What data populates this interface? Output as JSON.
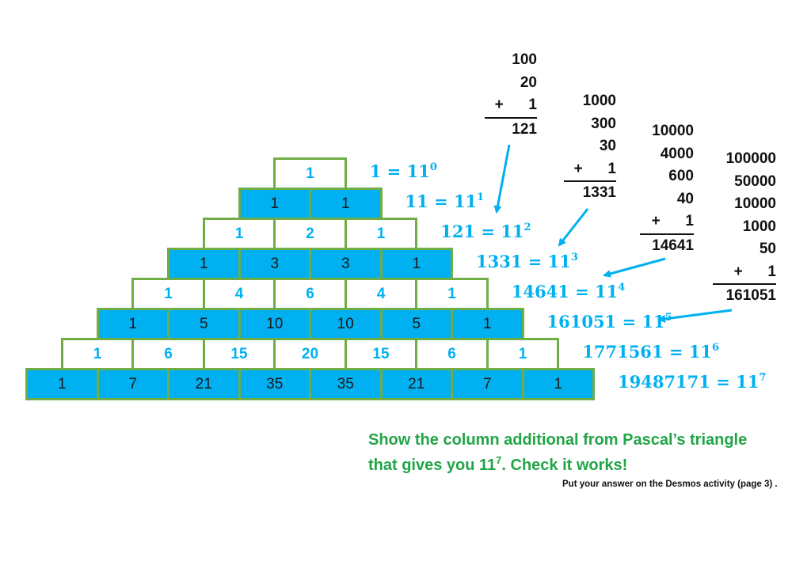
{
  "triangle": [
    [
      "1"
    ],
    [
      "1",
      "1"
    ],
    [
      "1",
      "2",
      "1"
    ],
    [
      "1",
      "3",
      "3",
      "1"
    ],
    [
      "1",
      "4",
      "6",
      "4",
      "1"
    ],
    [
      "1",
      "5",
      "10",
      "10",
      "5",
      "1"
    ],
    [
      "1",
      "6",
      "15",
      "20",
      "15",
      "6",
      "1"
    ],
    [
      "1",
      "7",
      "21",
      "35",
      "35",
      "21",
      "7",
      "1"
    ]
  ],
  "equations": [
    {
      "lhs": "1 = 11",
      "exp": "0"
    },
    {
      "lhs": "11 = 11",
      "exp": "1"
    },
    {
      "lhs": "121 = 11",
      "exp": "2"
    },
    {
      "lhs": "1331 = 11",
      "exp": "3"
    },
    {
      "lhs": "14641 = 11",
      "exp": "4"
    },
    {
      "lhs": "161051 = 11",
      "exp": "5"
    },
    {
      "lhs": "1771561 = 11",
      "exp": "6"
    },
    {
      "lhs": "19487171 = 11",
      "exp": "7"
    }
  ],
  "sums": [
    {
      "addends": [
        "100",
        "20",
        "+      1"
      ],
      "total": "121"
    },
    {
      "addends": [
        "1000",
        "300",
        "30",
        "+      1"
      ],
      "total": "1331"
    },
    {
      "addends": [
        "10000",
        "4000",
        "600",
        "40",
        "+      1"
      ],
      "total": "14641"
    },
    {
      "addends": [
        "100000",
        "50000",
        "10000",
        "1000",
        "50",
        "+      1"
      ],
      "total": "161051"
    }
  ],
  "task": {
    "line1": "Show the column additional from Pascal’s triangle",
    "line2_pre": "that gives you 11",
    "line2_exp": "7",
    "line2_post": ". Check it works!",
    "note": "Put your answer on the Desmos activity (page 3) ."
  },
  "colors": {
    "blue": "#00b0f0",
    "green": "#70ad47",
    "text_green": "#21a546"
  }
}
